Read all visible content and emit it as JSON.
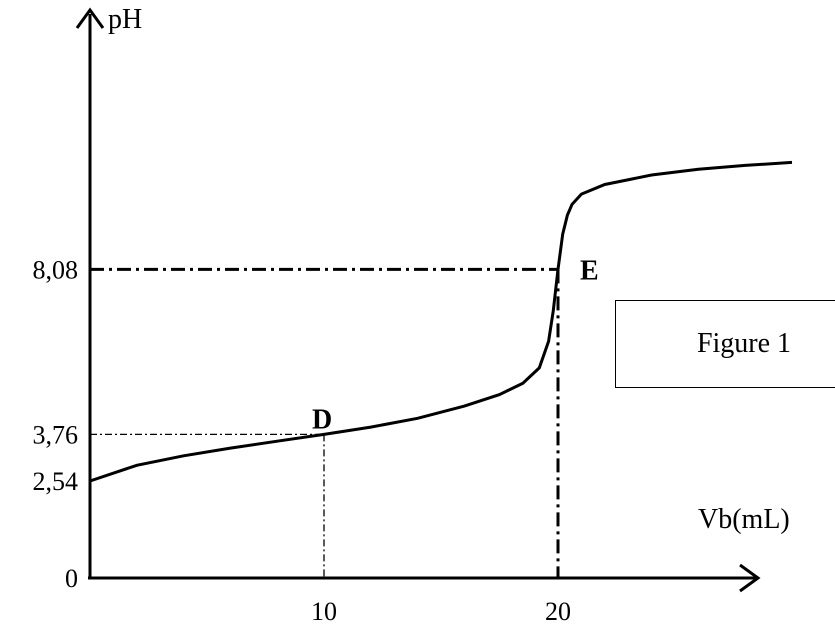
{
  "chart_data": {
    "type": "line",
    "ylabel": "pH",
    "xlabel": "Vb(mL)",
    "x_ticks": [
      "10",
      "20"
    ],
    "y_ticks": [
      "0",
      "2,54",
      "3,76",
      "8,08"
    ],
    "points": [
      {
        "label": "D",
        "x": 10,
        "y": 3.76
      },
      {
        "label": "E",
        "x": 20,
        "y": 8.08
      }
    ],
    "series": [
      {
        "x": [
          0,
          2,
          4,
          6,
          8,
          10,
          12,
          14,
          16,
          17.5,
          18.5,
          19.2,
          19.6,
          19.8,
          20,
          20.2,
          20.4,
          20.6,
          21,
          22,
          24,
          26,
          28,
          30
        ],
        "y": [
          2.54,
          2.95,
          3.2,
          3.4,
          3.58,
          3.76,
          3.95,
          4.18,
          4.5,
          4.8,
          5.1,
          5.5,
          6.2,
          7.0,
          8.08,
          9.0,
          9.5,
          9.78,
          10.05,
          10.3,
          10.55,
          10.7,
          10.8,
          10.88
        ]
      }
    ],
    "xlim": [
      0,
      30
    ],
    "ylim": [
      0,
      12
    ]
  },
  "caption": "Figure 1"
}
